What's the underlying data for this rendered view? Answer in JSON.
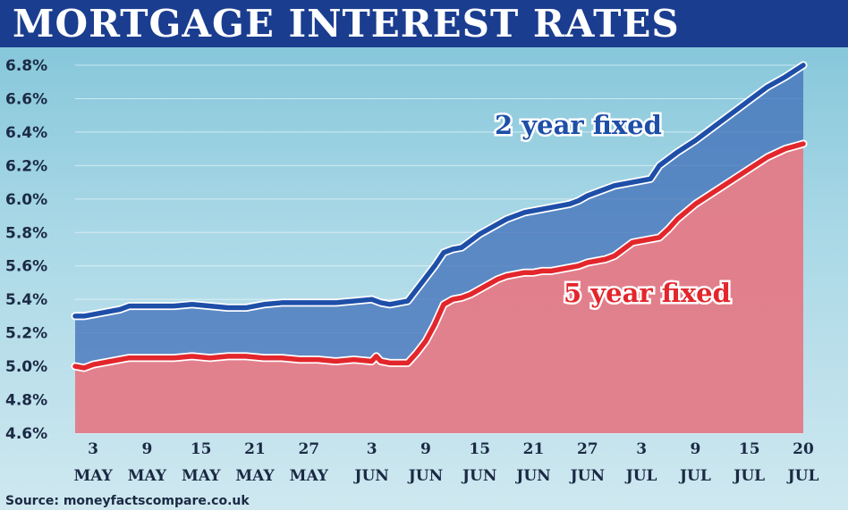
{
  "title": "MORTGAGE INTEREST RATES",
  "source": "Source: moneyfactscompare.co.uk",
  "colors": {
    "title_bg": "#1a3d8f",
    "two_year": "#1e4fa8",
    "five_year": "#e3262c",
    "two_year_fill": "#3f6db8",
    "five_year_fill": "#ef7f86"
  },
  "chart_data": {
    "type": "area",
    "ylim": [
      4.6,
      6.8
    ],
    "yticks": [
      "4.6%",
      "4.8%",
      "5.0%",
      "5.2%",
      "5.4%",
      "5.6%",
      "5.8%",
      "6.0%",
      "6.2%",
      "6.4%",
      "6.6%",
      "6.8%"
    ],
    "ytick_values": [
      4.6,
      4.8,
      5.0,
      5.2,
      5.4,
      5.6,
      5.8,
      6.0,
      6.2,
      6.4,
      6.6,
      6.8
    ],
    "xlim": [
      1,
      82
    ],
    "xticks": [
      {
        "x": 3,
        "day": "3",
        "month": "MAY"
      },
      {
        "x": 9,
        "day": "9",
        "month": "MAY"
      },
      {
        "x": 15,
        "day": "15",
        "month": "MAY"
      },
      {
        "x": 21,
        "day": "21",
        "month": "MAY"
      },
      {
        "x": 27,
        "day": "27",
        "month": "MAY"
      },
      {
        "x": 34,
        "day": "3",
        "month": "JUN"
      },
      {
        "x": 40,
        "day": "9",
        "month": "JUN"
      },
      {
        "x": 46,
        "day": "15",
        "month": "JUN"
      },
      {
        "x": 52,
        "day": "21",
        "month": "JUN"
      },
      {
        "x": 58,
        "day": "27",
        "month": "JUN"
      },
      {
        "x": 64,
        "day": "3",
        "month": "JUL"
      },
      {
        "x": 70,
        "day": "9",
        "month": "JUL"
      },
      {
        "x": 76,
        "day": "15",
        "month": "JUL"
      },
      {
        "x": 82,
        "day": "20",
        "month": "JUL"
      }
    ],
    "series": [
      {
        "name": "2 year fixed",
        "x": [
          1,
          2,
          3,
          4,
          5,
          6,
          7,
          8,
          9,
          10,
          12,
          14,
          16,
          18,
          20,
          22,
          24,
          26,
          28,
          30,
          32,
          34,
          35,
          36,
          38,
          39,
          40,
          41,
          42,
          43,
          44,
          45,
          46,
          47,
          48,
          49,
          50,
          51,
          52,
          53,
          54,
          55,
          56,
          57,
          58,
          59,
          60,
          61,
          62,
          63,
          64,
          65,
          66,
          67,
          68,
          70,
          72,
          74,
          76,
          78,
          80,
          82
        ],
        "values": [
          5.3,
          5.3,
          5.31,
          5.32,
          5.33,
          5.34,
          5.36,
          5.36,
          5.36,
          5.36,
          5.36,
          5.37,
          5.36,
          5.35,
          5.35,
          5.37,
          5.38,
          5.38,
          5.38,
          5.38,
          5.39,
          5.4,
          5.38,
          5.37,
          5.39,
          5.46,
          5.53,
          5.6,
          5.68,
          5.7,
          5.71,
          5.75,
          5.79,
          5.82,
          5.85,
          5.88,
          5.9,
          5.92,
          5.93,
          5.94,
          5.95,
          5.96,
          5.97,
          5.99,
          6.02,
          6.04,
          6.06,
          6.08,
          6.09,
          6.1,
          6.11,
          6.12,
          6.2,
          6.24,
          6.28,
          6.35,
          6.43,
          6.51,
          6.59,
          6.67,
          6.73,
          6.8
        ]
      },
      {
        "name": "5 year fixed",
        "x": [
          1,
          2,
          3,
          4,
          5,
          6,
          7,
          8,
          9,
          10,
          12,
          14,
          16,
          18,
          20,
          22,
          24,
          26,
          28,
          30,
          32,
          34,
          34.5,
          35,
          36,
          38,
          39,
          40,
          41,
          42,
          43,
          44,
          45,
          46,
          47,
          48,
          49,
          50,
          51,
          52,
          53,
          54,
          55,
          56,
          57,
          58,
          59,
          60,
          61,
          62,
          63,
          64,
          65,
          66,
          67,
          68,
          70,
          72,
          74,
          76,
          78,
          80,
          82
        ],
        "values": [
          5.0,
          4.99,
          5.01,
          5.02,
          5.03,
          5.04,
          5.05,
          5.05,
          5.05,
          5.05,
          5.05,
          5.06,
          5.05,
          5.06,
          5.06,
          5.05,
          5.05,
          5.04,
          5.04,
          5.03,
          5.04,
          5.03,
          5.06,
          5.03,
          5.02,
          5.02,
          5.08,
          5.15,
          5.25,
          5.37,
          5.4,
          5.41,
          5.43,
          5.46,
          5.49,
          5.52,
          5.54,
          5.55,
          5.56,
          5.56,
          5.57,
          5.57,
          5.58,
          5.59,
          5.6,
          5.62,
          5.63,
          5.64,
          5.66,
          5.7,
          5.74,
          5.75,
          5.76,
          5.77,
          5.82,
          5.88,
          5.97,
          6.04,
          6.11,
          6.18,
          6.25,
          6.3,
          6.33
        ]
      }
    ],
    "annotations": [
      "2 year fixed",
      "5 year fixed"
    ],
    "grid": true
  }
}
